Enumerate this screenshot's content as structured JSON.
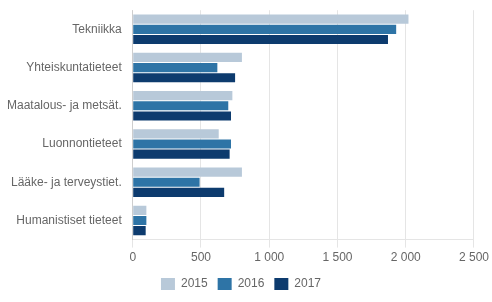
{
  "chart_data": {
    "type": "bar",
    "orientation": "horizontal",
    "categories": [
      "Tekniikka",
      "Yhteiskuntatieteet",
      "Maatalous- ja metsät.",
      "Luonnontieteet",
      "Lääke- ja terveystiet.",
      "Humanistiset tieteet"
    ],
    "series": [
      {
        "name": "2015",
        "color": "#b8c9d9",
        "values": [
          2020,
          800,
          730,
          630,
          800,
          100
        ]
      },
      {
        "name": "2016",
        "color": "#2e74a6",
        "values": [
          1930,
          620,
          700,
          720,
          490,
          100
        ]
      },
      {
        "name": "2017",
        "color": "#0d3b6e",
        "values": [
          1870,
          750,
          720,
          710,
          670,
          95
        ]
      }
    ],
    "xlim": [
      0,
      2500
    ],
    "xticks": [
      0,
      500,
      {
        "value": 1000,
        "label": "1 000"
      },
      {
        "value": 1500,
        "label": "1 500"
      },
      {
        "value": 2000,
        "label": "2 000"
      },
      {
        "value": 2500,
        "label": "2 500"
      }
    ],
    "grid": true,
    "legend": "bottom"
  }
}
